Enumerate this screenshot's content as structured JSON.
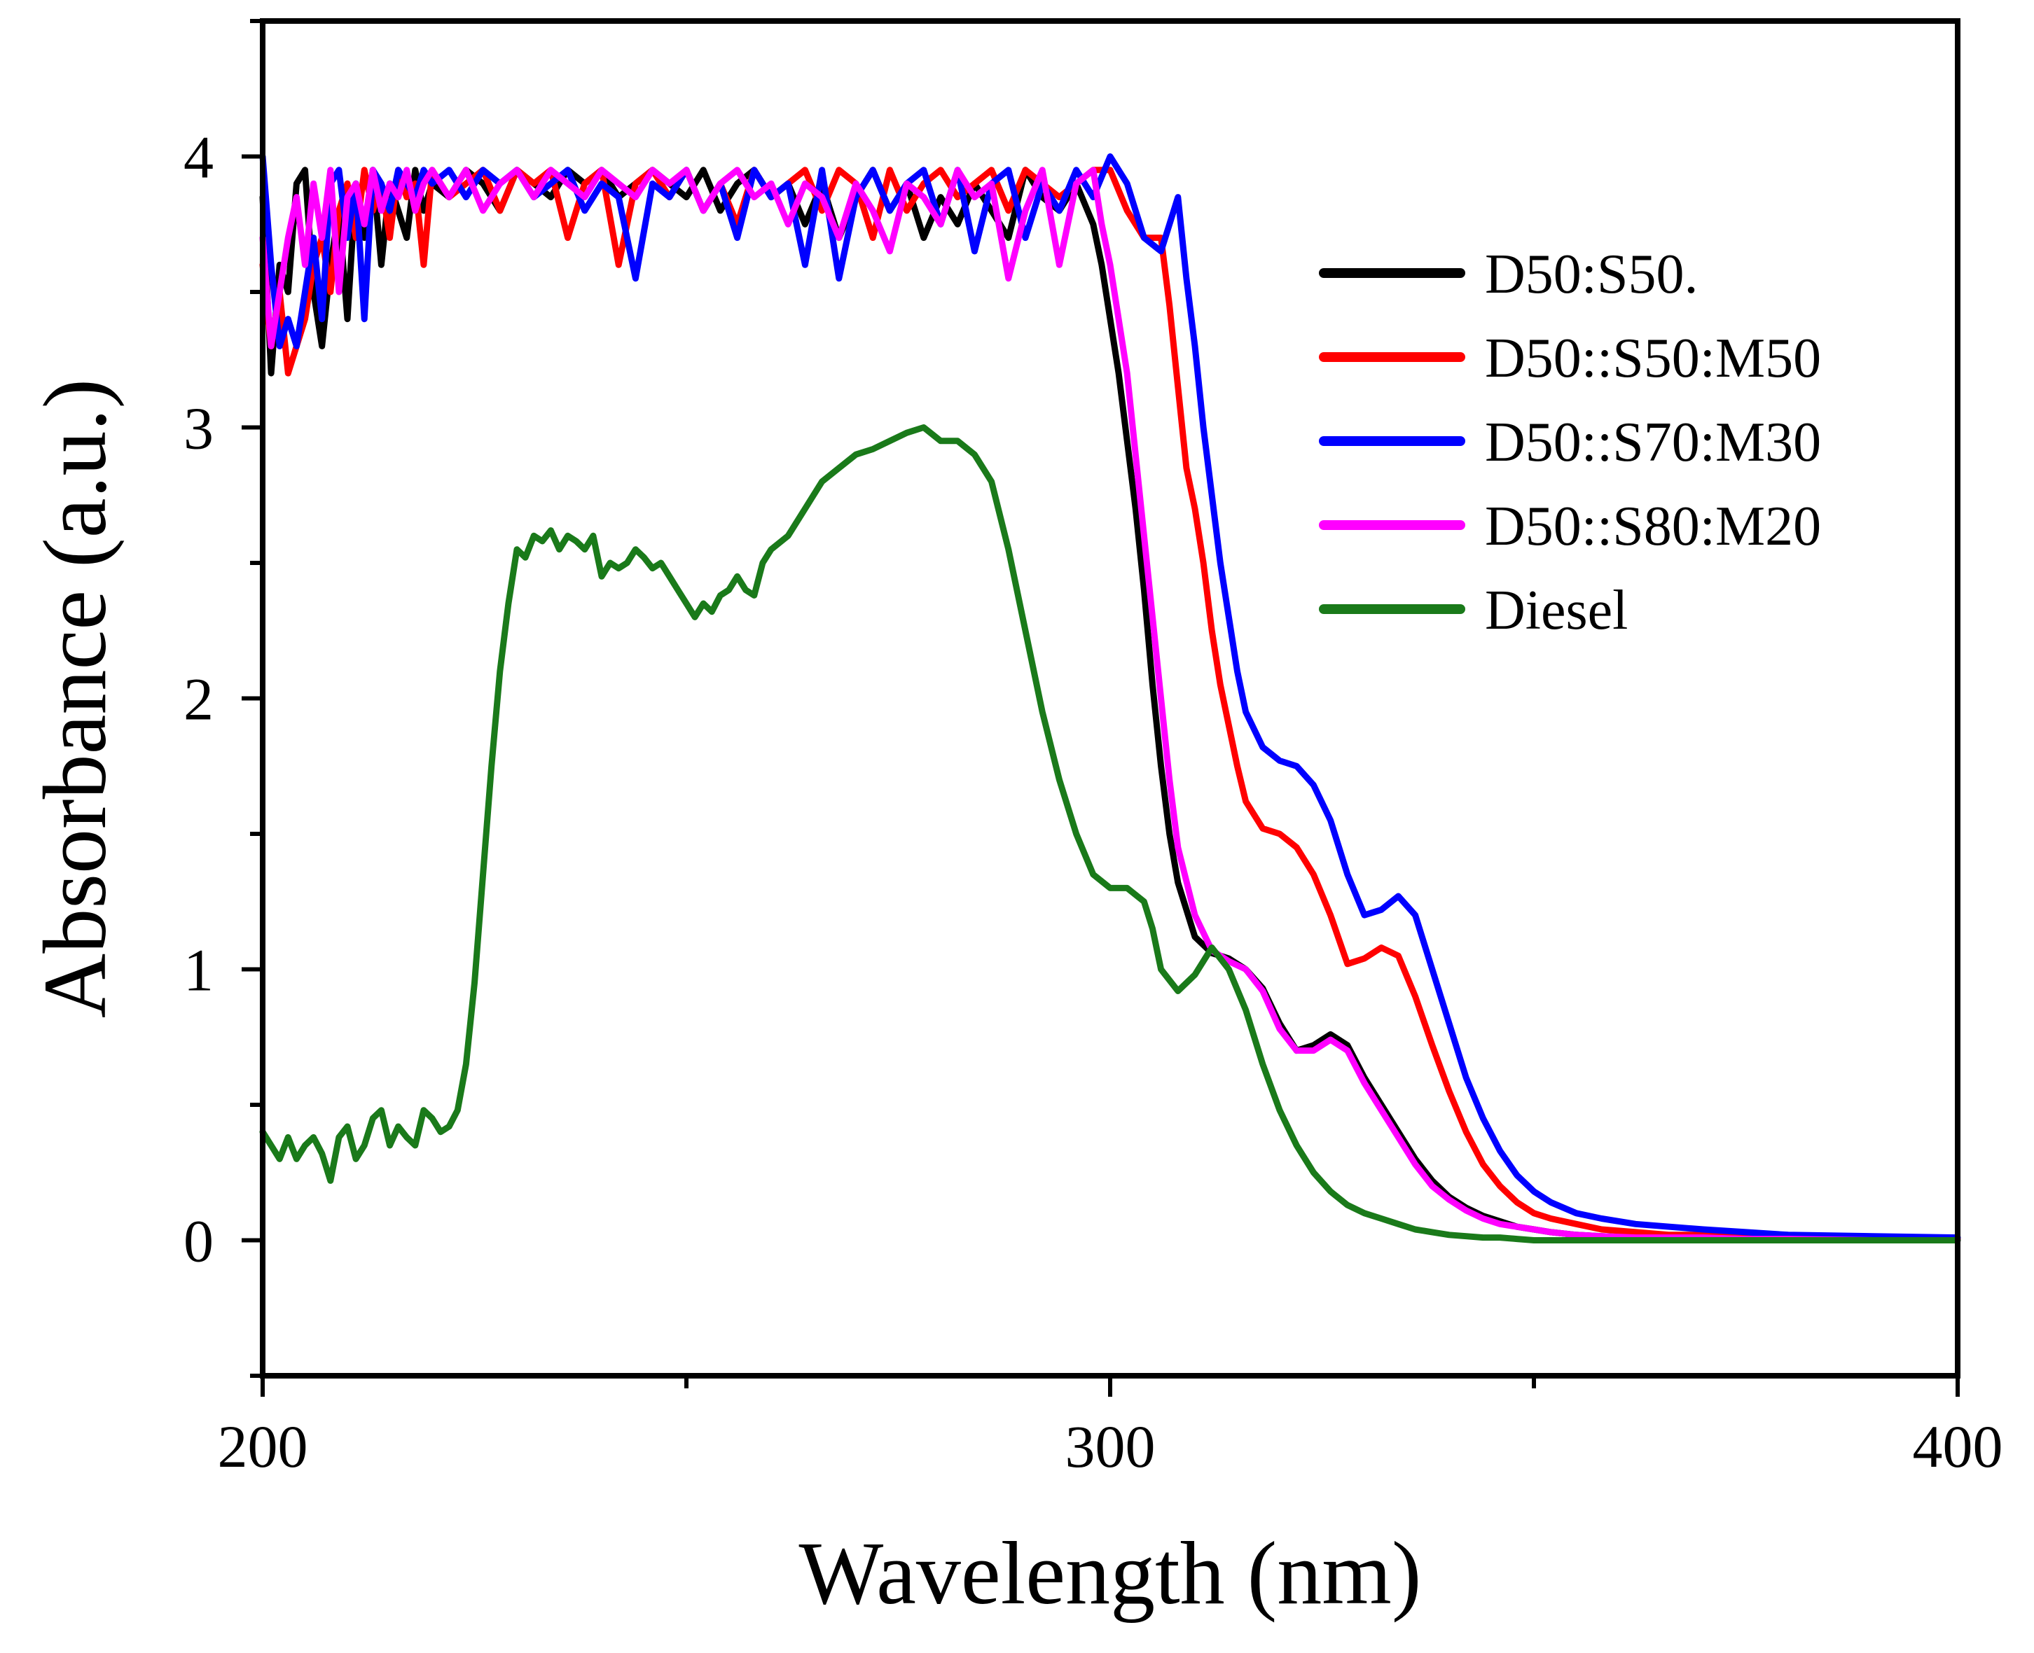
{
  "chart_data": {
    "type": "line",
    "title": "",
    "xlabel": "Wavelength (nm)",
    "ylabel": "Absorbance (a.u.)",
    "xlim": [
      200,
      400
    ],
    "ylim": [
      -0.5,
      4.5
    ],
    "x_ticks": [
      200,
      300,
      400
    ],
    "y_ticks": [
      0,
      1,
      2,
      3,
      4
    ],
    "x_minor_ticks": [
      250,
      350
    ],
    "y_minor_ticks": [
      -0.5,
      0.5,
      1.5,
      2.5,
      3.5,
      4.5
    ],
    "grid": false,
    "legend_position": "top-right",
    "series": [
      {
        "name": "D50:S50.",
        "color": "#000000",
        "x": [
          200,
          201,
          202,
          203,
          204,
          205,
          206,
          207,
          208,
          209,
          210,
          211,
          212,
          213,
          214,
          215,
          216,
          217,
          218,
          219,
          220,
          222,
          224,
          226,
          228,
          230,
          232,
          234,
          236,
          238,
          240,
          242,
          244,
          246,
          248,
          250,
          252,
          254,
          256,
          258,
          260,
          262,
          264,
          266,
          268,
          270,
          272,
          274,
          276,
          278,
          280,
          282,
          284,
          286,
          288,
          290,
          292,
          294,
          296,
          298,
          299,
          300,
          301,
          302,
          303,
          304,
          305,
          306,
          307,
          308,
          310,
          312,
          314,
          316,
          318,
          320,
          322,
          324,
          326,
          328,
          330,
          332,
          334,
          336,
          338,
          340,
          342,
          344,
          346,
          348,
          350,
          352,
          355,
          358,
          362,
          366,
          370,
          375,
          380,
          390,
          400
        ],
        "values": [
          3.85,
          3.2,
          3.6,
          3.5,
          3.9,
          3.95,
          3.5,
          3.3,
          3.6,
          3.8,
          3.4,
          3.9,
          3.7,
          3.95,
          3.6,
          3.9,
          3.8,
          3.7,
          3.95,
          3.8,
          3.9,
          3.85,
          3.95,
          3.9,
          3.8,
          3.95,
          3.9,
          3.85,
          3.95,
          3.9,
          3.95,
          3.85,
          3.9,
          3.95,
          3.9,
          3.85,
          3.95,
          3.8,
          3.9,
          3.95,
          3.85,
          3.9,
          3.75,
          3.9,
          3.7,
          3.85,
          3.95,
          3.8,
          3.9,
          3.7,
          3.85,
          3.75,
          3.9,
          3.8,
          3.7,
          3.95,
          3.85,
          3.8,
          3.9,
          3.75,
          3.6,
          3.4,
          3.2,
          2.95,
          2.7,
          2.4,
          2.05,
          1.75,
          1.5,
          1.32,
          1.12,
          1.06,
          1.04,
          1.0,
          0.93,
          0.8,
          0.7,
          0.72,
          0.76,
          0.72,
          0.6,
          0.5,
          0.4,
          0.3,
          0.22,
          0.16,
          0.12,
          0.09,
          0.07,
          0.05,
          0.04,
          0.03,
          0.02,
          0.015,
          0.01,
          0.01,
          0.01,
          0.005,
          0.005,
          0.0,
          0.0
        ]
      },
      {
        "name": "D50::S50:M50",
        "color": "#ff0000",
        "x": [
          200,
          201,
          202,
          203,
          204,
          205,
          206,
          207,
          208,
          209,
          210,
          211,
          212,
          213,
          214,
          215,
          216,
          217,
          218,
          219,
          220,
          222,
          224,
          226,
          228,
          230,
          232,
          234,
          236,
          238,
          240,
          242,
          244,
          246,
          248,
          250,
          252,
          254,
          256,
          258,
          260,
          262,
          264,
          266,
          268,
          270,
          272,
          274,
          276,
          278,
          280,
          282,
          284,
          286,
          288,
          290,
          292,
          294,
          296,
          298,
          300,
          302,
          304,
          306,
          307,
          308,
          309,
          310,
          311,
          312,
          313,
          314,
          315,
          316,
          318,
          320,
          322,
          324,
          326,
          328,
          330,
          332,
          334,
          336,
          338,
          340,
          342,
          344,
          346,
          348,
          350,
          352,
          355,
          358,
          362,
          366,
          370,
          375,
          380,
          390,
          400
        ],
        "values": [
          3.6,
          3.3,
          3.5,
          3.2,
          3.3,
          3.4,
          3.6,
          3.7,
          3.5,
          3.8,
          3.9,
          3.7,
          3.95,
          3.8,
          3.9,
          3.7,
          3.95,
          3.85,
          3.9,
          3.6,
          3.95,
          3.85,
          3.9,
          3.95,
          3.8,
          3.95,
          3.9,
          3.95,
          3.7,
          3.9,
          3.95,
          3.6,
          3.9,
          3.95,
          3.85,
          3.95,
          3.8,
          3.9,
          3.75,
          3.95,
          3.85,
          3.9,
          3.95,
          3.8,
          3.95,
          3.9,
          3.7,
          3.95,
          3.8,
          3.9,
          3.95,
          3.85,
          3.9,
          3.95,
          3.8,
          3.95,
          3.9,
          3.85,
          3.9,
          3.95,
          3.95,
          3.8,
          3.7,
          3.7,
          3.45,
          3.15,
          2.85,
          2.7,
          2.5,
          2.25,
          2.05,
          1.9,
          1.75,
          1.62,
          1.52,
          1.5,
          1.45,
          1.35,
          1.2,
          1.02,
          1.04,
          1.08,
          1.05,
          0.9,
          0.72,
          0.55,
          0.4,
          0.28,
          0.2,
          0.14,
          0.1,
          0.08,
          0.06,
          0.04,
          0.03,
          0.02,
          0.02,
          0.015,
          0.01,
          0.01,
          0.005
        ]
      },
      {
        "name": "D50::S70:M30",
        "color": "#0000ff",
        "x": [
          200,
          201,
          202,
          203,
          204,
          205,
          206,
          207,
          208,
          209,
          210,
          211,
          212,
          213,
          214,
          215,
          216,
          217,
          218,
          219,
          220,
          222,
          224,
          226,
          228,
          230,
          232,
          234,
          236,
          238,
          240,
          242,
          244,
          246,
          248,
          250,
          252,
          254,
          256,
          258,
          260,
          262,
          264,
          266,
          268,
          270,
          272,
          274,
          276,
          278,
          280,
          282,
          284,
          286,
          288,
          290,
          292,
          294,
          296,
          298,
          300,
          302,
          304,
          306,
          307,
          308,
          309,
          310,
          311,
          312,
          313,
          314,
          315,
          316,
          318,
          320,
          322,
          324,
          326,
          328,
          330,
          332,
          334,
          336,
          338,
          340,
          342,
          344,
          346,
          348,
          350,
          352,
          355,
          358,
          362,
          366,
          370,
          375,
          380,
          390,
          400
        ],
        "values": [
          4.0,
          3.6,
          3.3,
          3.4,
          3.3,
          3.5,
          3.7,
          3.4,
          3.9,
          3.95,
          3.7,
          3.9,
          3.4,
          3.95,
          3.9,
          3.8,
          3.95,
          3.9,
          3.85,
          3.95,
          3.9,
          3.95,
          3.85,
          3.95,
          3.9,
          3.95,
          3.85,
          3.9,
          3.95,
          3.8,
          3.9,
          3.85,
          3.55,
          3.9,
          3.85,
          3.95,
          3.8,
          3.9,
          3.7,
          3.95,
          3.85,
          3.9,
          3.6,
          3.95,
          3.55,
          3.85,
          3.95,
          3.8,
          3.9,
          3.95,
          3.75,
          3.95,
          3.65,
          3.9,
          3.95,
          3.7,
          3.9,
          3.8,
          3.95,
          3.85,
          4.0,
          3.9,
          3.7,
          3.65,
          3.75,
          3.85,
          3.55,
          3.3,
          3.0,
          2.75,
          2.5,
          2.3,
          2.1,
          1.95,
          1.82,
          1.77,
          1.75,
          1.68,
          1.55,
          1.35,
          1.2,
          1.22,
          1.27,
          1.2,
          1.0,
          0.8,
          0.6,
          0.45,
          0.33,
          0.24,
          0.18,
          0.14,
          0.1,
          0.08,
          0.06,
          0.05,
          0.04,
          0.03,
          0.02,
          0.015,
          0.01
        ]
      },
      {
        "name": "D50::S80:M20",
        "color": "#ff00ff",
        "x": [
          200,
          201,
          202,
          203,
          204,
          205,
          206,
          207,
          208,
          209,
          210,
          211,
          212,
          213,
          214,
          215,
          216,
          217,
          218,
          219,
          220,
          222,
          224,
          226,
          228,
          230,
          232,
          234,
          236,
          238,
          240,
          242,
          244,
          246,
          248,
          250,
          252,
          254,
          256,
          258,
          260,
          262,
          264,
          266,
          268,
          270,
          272,
          274,
          276,
          278,
          280,
          282,
          284,
          286,
          288,
          290,
          292,
          294,
          296,
          298,
          299,
          300,
          301,
          302,
          303,
          304,
          305,
          306,
          307,
          308,
          310,
          312,
          314,
          316,
          318,
          320,
          322,
          324,
          326,
          328,
          330,
          332,
          334,
          336,
          338,
          340,
          342,
          344,
          346,
          348,
          350,
          352,
          355,
          358,
          362,
          366,
          370,
          375,
          380,
          390,
          400
        ],
        "values": [
          3.7,
          3.3,
          3.5,
          3.7,
          3.85,
          3.6,
          3.9,
          3.7,
          3.95,
          3.5,
          3.85,
          3.9,
          3.75,
          3.95,
          3.8,
          3.9,
          3.85,
          3.95,
          3.8,
          3.9,
          3.95,
          3.85,
          3.95,
          3.8,
          3.9,
          3.95,
          3.85,
          3.95,
          3.9,
          3.85,
          3.95,
          3.9,
          3.85,
          3.95,
          3.9,
          3.95,
          3.8,
          3.9,
          3.95,
          3.85,
          3.9,
          3.75,
          3.9,
          3.85,
          3.7,
          3.9,
          3.8,
          3.65,
          3.9,
          3.85,
          3.75,
          3.95,
          3.85,
          3.9,
          3.55,
          3.8,
          3.95,
          3.6,
          3.9,
          3.95,
          3.75,
          3.6,
          3.4,
          3.2,
          2.9,
          2.6,
          2.3,
          2.0,
          1.7,
          1.45,
          1.2,
          1.07,
          1.03,
          1.0,
          0.92,
          0.78,
          0.7,
          0.7,
          0.74,
          0.7,
          0.58,
          0.48,
          0.38,
          0.28,
          0.2,
          0.15,
          0.11,
          0.08,
          0.06,
          0.05,
          0.04,
          0.03,
          0.02,
          0.015,
          0.01,
          0.01,
          0.01,
          0.005,
          0.005,
          0.0,
          0.0
        ]
      },
      {
        "name": "Diesel",
        "color": "#1a7a1a",
        "x": [
          200,
          201,
          202,
          203,
          204,
          205,
          206,
          207,
          208,
          209,
          210,
          211,
          212,
          213,
          214,
          215,
          216,
          217,
          218,
          219,
          220,
          221,
          222,
          223,
          224,
          225,
          226,
          227,
          228,
          229,
          230,
          231,
          232,
          233,
          234,
          235,
          236,
          237,
          238,
          239,
          240,
          241,
          242,
          243,
          244,
          245,
          246,
          247,
          248,
          249,
          250,
          251,
          252,
          253,
          254,
          255,
          256,
          257,
          258,
          259,
          260,
          262,
          264,
          266,
          268,
          270,
          272,
          274,
          276,
          278,
          280,
          282,
          284,
          286,
          288,
          290,
          292,
          294,
          296,
          298,
          300,
          302,
          304,
          305,
          306,
          308,
          310,
          312,
          314,
          316,
          318,
          320,
          322,
          324,
          326,
          328,
          330,
          332,
          334,
          336,
          338,
          340,
          342,
          344,
          346,
          348,
          350,
          352,
          355,
          358,
          362,
          366,
          370,
          375,
          380,
          390,
          400
        ],
        "values": [
          0.4,
          0.35,
          0.3,
          0.38,
          0.3,
          0.35,
          0.38,
          0.32,
          0.22,
          0.38,
          0.42,
          0.3,
          0.35,
          0.45,
          0.48,
          0.35,
          0.42,
          0.38,
          0.35,
          0.48,
          0.45,
          0.4,
          0.42,
          0.48,
          0.65,
          0.95,
          1.35,
          1.75,
          2.1,
          2.35,
          2.55,
          2.52,
          2.6,
          2.58,
          2.62,
          2.55,
          2.6,
          2.58,
          2.55,
          2.6,
          2.45,
          2.5,
          2.48,
          2.5,
          2.55,
          2.52,
          2.48,
          2.5,
          2.45,
          2.4,
          2.35,
          2.3,
          2.35,
          2.32,
          2.38,
          2.4,
          2.45,
          2.4,
          2.38,
          2.5,
          2.55,
          2.6,
          2.7,
          2.8,
          2.85,
          2.9,
          2.92,
          2.95,
          2.98,
          3.0,
          2.95,
          2.95,
          2.9,
          2.8,
          2.55,
          2.25,
          1.95,
          1.7,
          1.5,
          1.35,
          1.3,
          1.3,
          1.25,
          1.15,
          1.0,
          0.92,
          0.98,
          1.08,
          1.0,
          0.85,
          0.65,
          0.48,
          0.35,
          0.25,
          0.18,
          0.13,
          0.1,
          0.08,
          0.06,
          0.04,
          0.03,
          0.02,
          0.015,
          0.01,
          0.01,
          0.005,
          0.0,
          0.0,
          0.0,
          0.0,
          0.0,
          0.0,
          0.0,
          0.0,
          0.0,
          0.0,
          0.0
        ]
      }
    ]
  }
}
